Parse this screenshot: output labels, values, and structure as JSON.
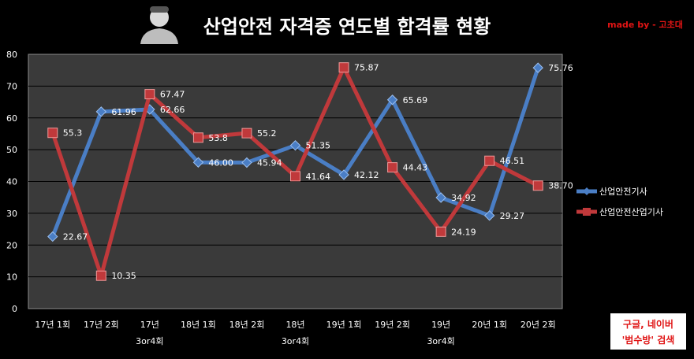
{
  "header": {
    "title": "산업안전 자격증 연도별 합격률 현황",
    "credit": "made by - 고초대"
  },
  "footer": {
    "note_line1": "구글, 네이버",
    "note_line2": "'범수방' 검색"
  },
  "chart_data": {
    "type": "line",
    "categories": [
      [
        "17년 1회"
      ],
      [
        "17년 2회"
      ],
      [
        "17년",
        "3or4회"
      ],
      [
        "18년 1회"
      ],
      [
        "18년 2회"
      ],
      [
        "18년",
        "3or4회"
      ],
      [
        "19년 1회"
      ],
      [
        "19년 2회"
      ],
      [
        "19년",
        "3or4회"
      ],
      [
        "20년 1회"
      ],
      [
        "20년 2회"
      ]
    ],
    "series": [
      {
        "name": "산업안전기사",
        "color": "#4a7ec5",
        "marker": "diamond",
        "values": [
          22.67,
          61.96,
          62.66,
          46.0,
          45.94,
          51.35,
          42.12,
          65.69,
          34.92,
          29.27,
          75.76
        ],
        "labels": [
          "22.67",
          "61.96",
          "62.66",
          "46.00",
          "45.94",
          "51.35",
          "42.12",
          "65.69",
          "34.92",
          "29.27",
          "75.76"
        ]
      },
      {
        "name": "산업안전산업기사",
        "color": "#c0393b",
        "marker": "square",
        "values": [
          55.3,
          10.35,
          67.47,
          53.8,
          55.2,
          41.64,
          75.87,
          44.43,
          24.19,
          46.51,
          38.7
        ],
        "labels": [
          "55.3",
          "10.35",
          "67.47",
          "53.8",
          "55.2",
          "41.64",
          "75.87",
          "44.43",
          "24.19",
          "46.51",
          "38.70"
        ]
      }
    ],
    "ylim": [
      0,
      80
    ],
    "yticks": [
      "0",
      "10",
      "20",
      "30",
      "40",
      "50",
      "60",
      "70",
      "80"
    ],
    "grid": true,
    "legend_position": "right"
  }
}
